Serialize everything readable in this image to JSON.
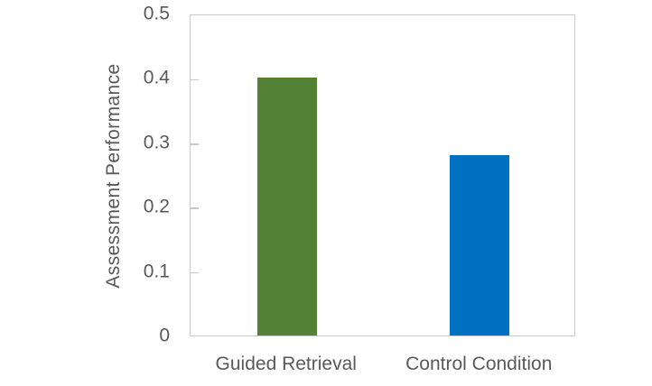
{
  "chart_data": {
    "type": "bar",
    "categories": [
      "Guided Retrieval",
      "Control Condition"
    ],
    "values": [
      0.4,
      0.28
    ],
    "title": "",
    "xlabel": "",
    "ylabel": "Assessment Performance",
    "ylim": [
      0,
      0.5
    ],
    "yticks": [
      0,
      0.1,
      0.2,
      0.3,
      0.4,
      0.5
    ],
    "ytick_labels": [
      "0",
      "0.1",
      "0.2",
      "0.3",
      "0.4",
      "0.5"
    ],
    "bar_colors": [
      "#538135",
      "#0070C0"
    ],
    "grid": false,
    "legend_position": "none"
  },
  "style": {
    "text_color": "#595959",
    "axis_line_color": "#c9c9c9",
    "background": "#ffffff"
  }
}
